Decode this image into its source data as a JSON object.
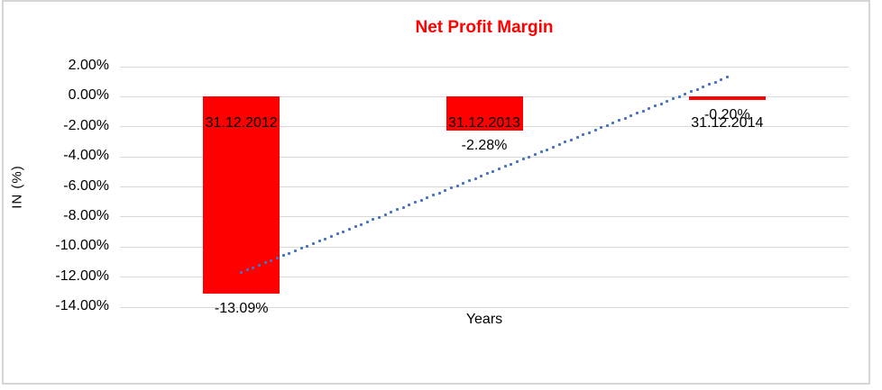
{
  "chart_data": {
    "type": "bar",
    "title": "Net Profit Margin",
    "title_color": "#FF0000",
    "xlabel": "Years",
    "ylabel": "IN (%)",
    "categories": [
      "31.12.2012",
      "31.12.2013",
      "31.12.2014"
    ],
    "values": [
      -13.09,
      -2.28,
      -0.2
    ],
    "data_labels": [
      "-13.09%",
      "-2.28%",
      "-0.20%"
    ],
    "y_ticks": [
      {
        "label": "2.00%",
        "value": 2
      },
      {
        "label": "0.00%",
        "value": 0
      },
      {
        "label": "-2.00%",
        "value": -2
      },
      {
        "label": "-4.00%",
        "value": -4
      },
      {
        "label": "-6.00%",
        "value": -6
      },
      {
        "label": "-8.00%",
        "value": -8
      },
      {
        "label": "-10.00%",
        "value": -10
      },
      {
        "label": "-12.00%",
        "value": -12
      },
      {
        "label": "-14.00%",
        "value": -14
      }
    ],
    "ylim": [
      -14,
      2
    ],
    "grid": true,
    "legend": "none",
    "bar_color": "#FF0000",
    "gridline_color": "#D9D9D9",
    "frame_color": "#D6D6D6",
    "trendline": {
      "type": "linear",
      "style": "dotted",
      "color": "#4472C4",
      "start_value": -11.7,
      "end_value": 1.3
    }
  }
}
